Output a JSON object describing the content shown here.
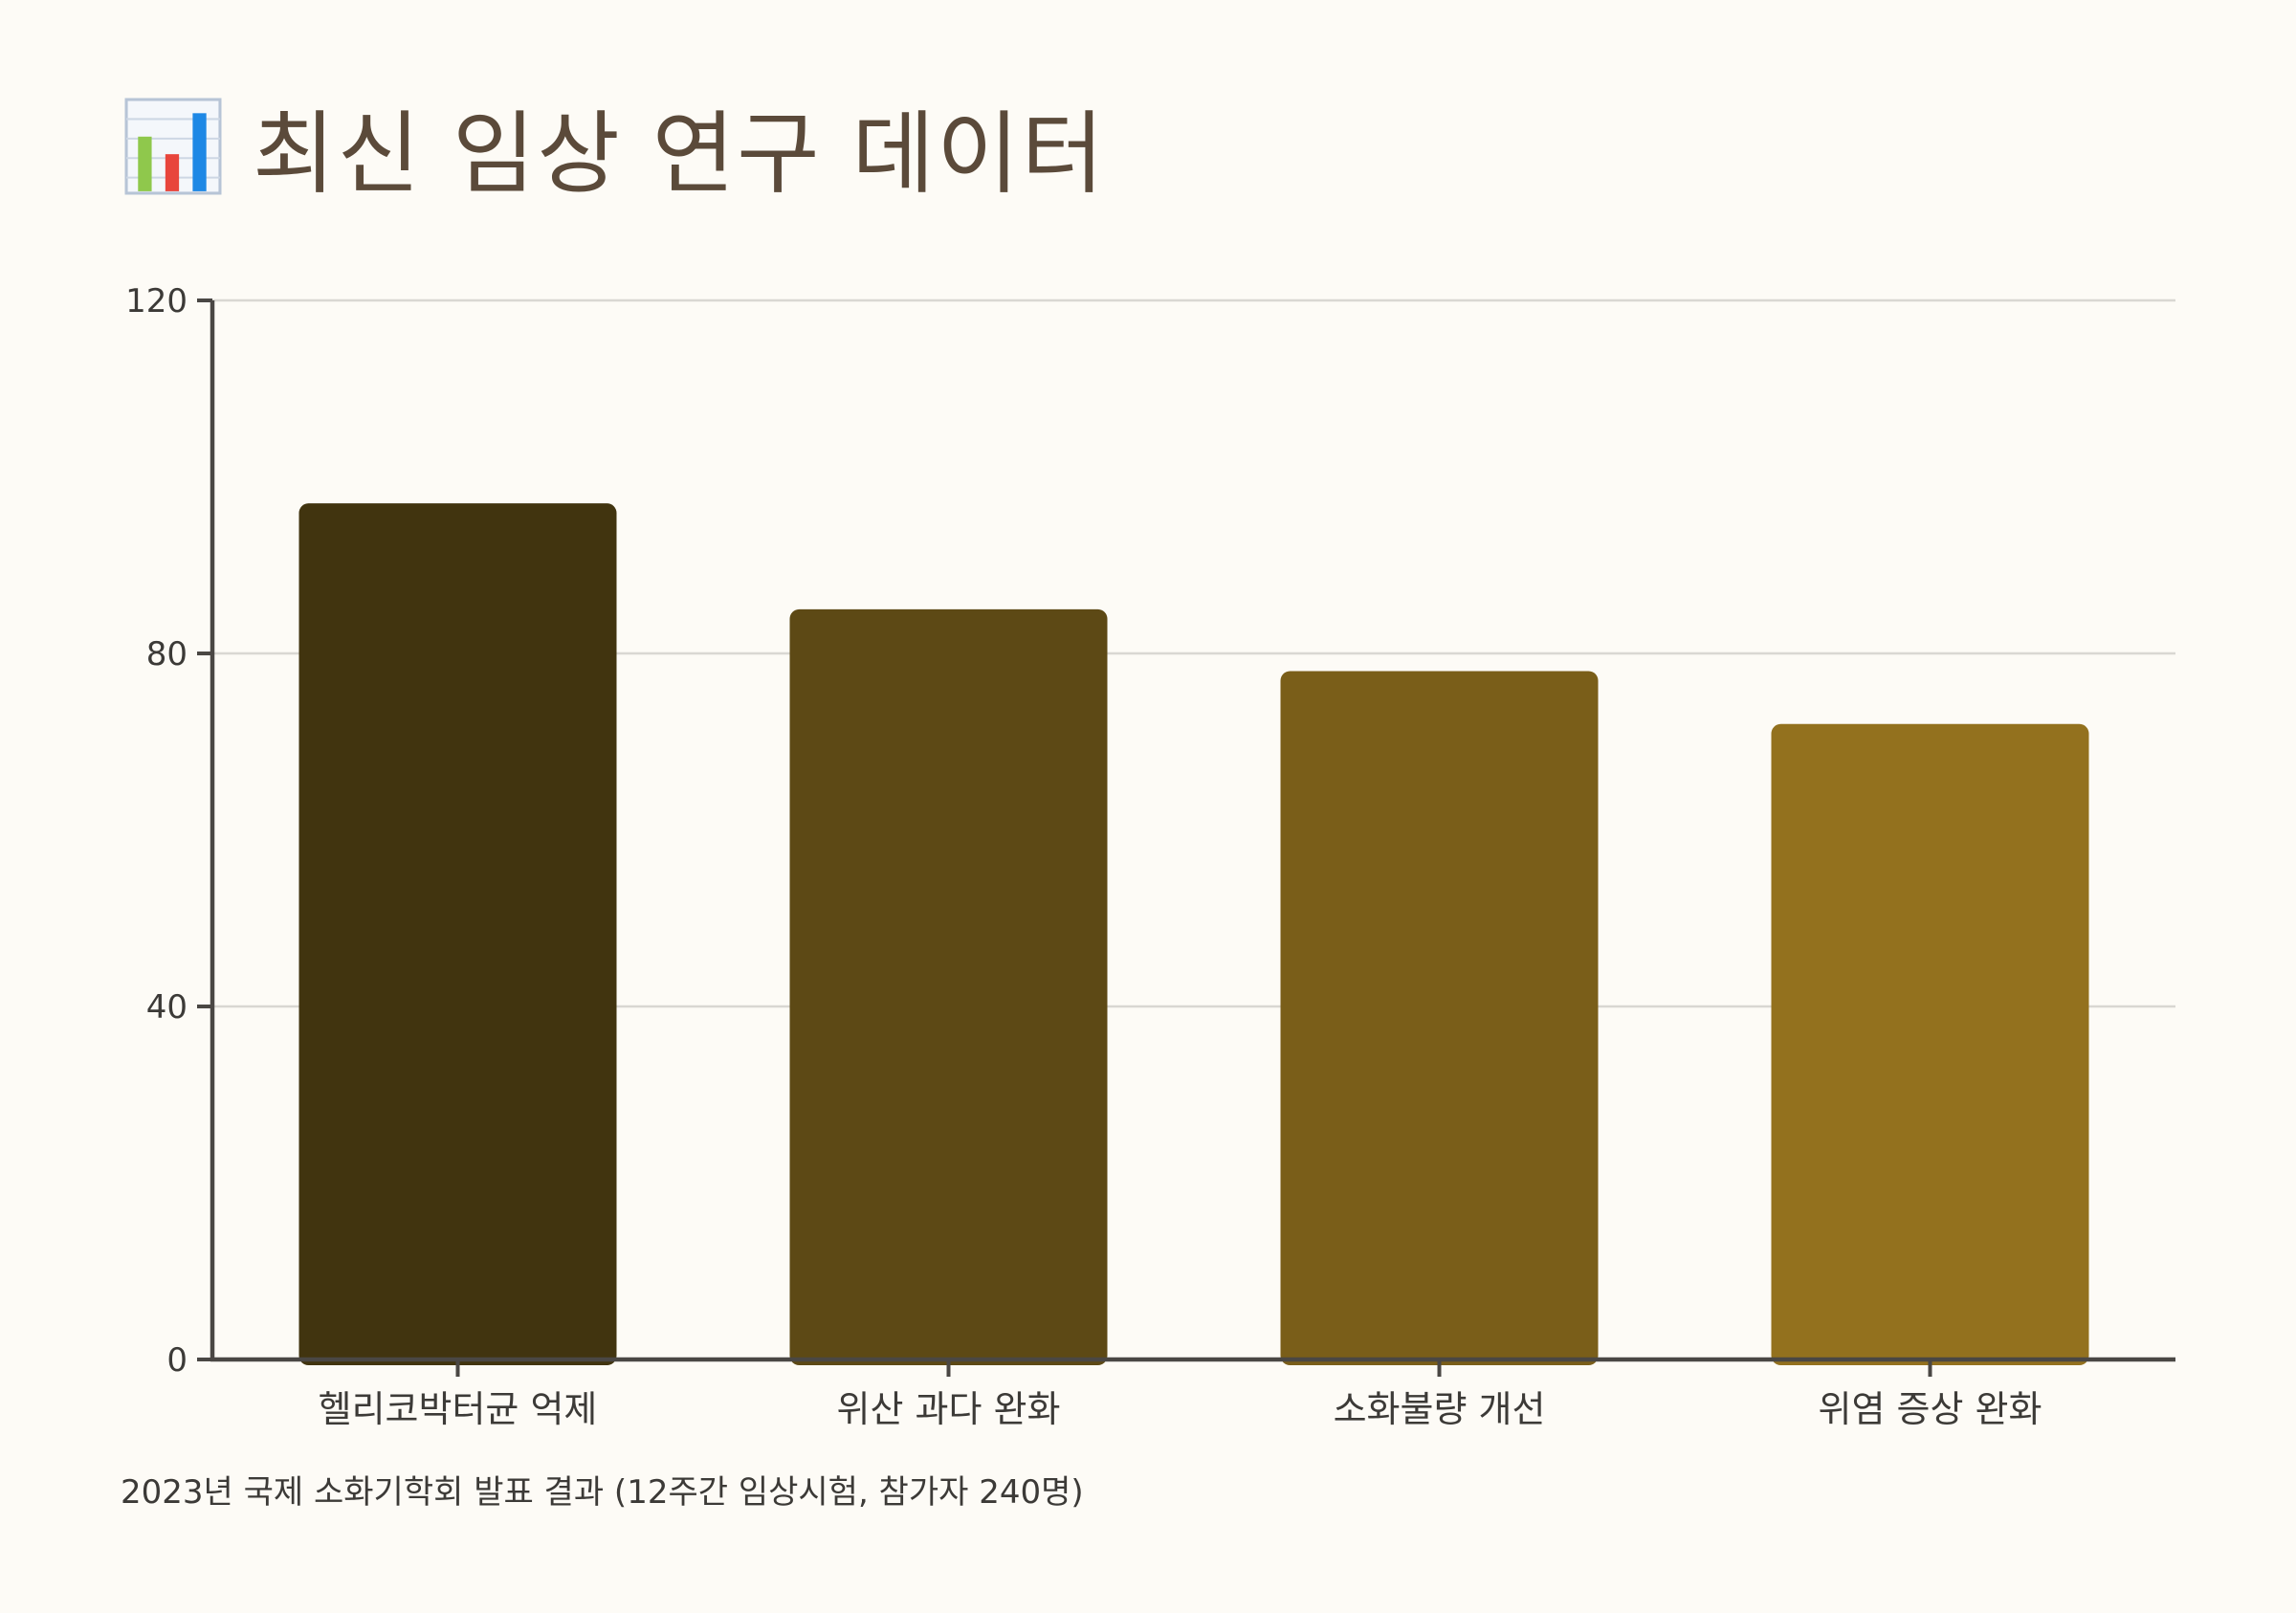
{
  "header": {
    "title": "최신 임상 연구 데이터",
    "icon": "bar-chart-icon"
  },
  "footnote": "2023년 국제 소화기학회 발표 결과 (12주간 임상시험, 참가자 240명)",
  "colors": {
    "background": "#fdfbf6",
    "axis": "#4a4744",
    "grid": "#d9d7d2",
    "title": "#5b4a3a"
  },
  "chart_data": {
    "type": "bar",
    "title": "",
    "xlabel": "",
    "ylabel": "",
    "categories": [
      "헬리코박터균 억제",
      "위산 과다 완화",
      "소화불량 개선",
      "위염 증상 완화"
    ],
    "values": [
      97,
      85,
      78,
      72
    ],
    "bar_colors": [
      "#41340f",
      "#5d4915",
      "#7a5e19",
      "#93711e"
    ],
    "ylim": [
      0,
      120
    ],
    "yticks": [
      0,
      40,
      80,
      120
    ],
    "grid": true,
    "legend": "none"
  }
}
